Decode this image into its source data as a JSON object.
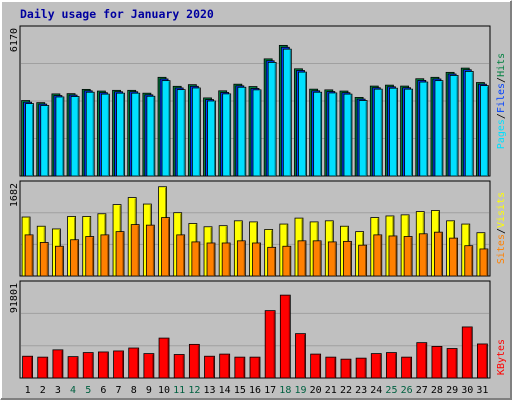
{
  "chart_data": {
    "type": "bar",
    "title": "Daily usage for January 2020",
    "categories": [
      "1",
      "2",
      "3",
      "4",
      "5",
      "6",
      "7",
      "8",
      "9",
      "10",
      "11",
      "12",
      "13",
      "14",
      "15",
      "16",
      "17",
      "18",
      "19",
      "20",
      "21",
      "22",
      "23",
      "24",
      "25",
      "26",
      "27",
      "28",
      "29",
      "30",
      "31"
    ],
    "weekend_days": [
      "4",
      "5",
      "11",
      "12",
      "18",
      "19",
      "25",
      "26"
    ],
    "panels": [
      {
        "id": "hits",
        "ymax_label": "6170",
        "ymax": 6170,
        "legend": [
          "Pages",
          "/",
          "Files",
          "/",
          "Hits"
        ],
        "series": [
          {
            "name": "Hits",
            "color": "#008040",
            "values": [
              3190,
              3100,
              3470,
              3480,
              3660,
              3590,
              3620,
              3620,
              3500,
              4170,
              3790,
              3860,
              3300,
              3600,
              3880,
              3780,
              4950,
              5520,
              4530,
              3670,
              3640,
              3590,
              3320,
              3800,
              3840,
              3800,
              4110,
              4170,
              4380,
              4560,
              3950
            ]
          },
          {
            "name": "Files",
            "color": "#0040ff",
            "values": [
              3120,
              3040,
              3400,
              3420,
              3600,
              3520,
              3560,
              3560,
              3430,
              4100,
              3720,
              3790,
              3230,
              3530,
              3810,
              3700,
              4870,
              5440,
              4460,
              3600,
              3570,
              3520,
              3250,
              3730,
              3770,
              3730,
              4040,
              4100,
              4310,
              4490,
              3880
            ]
          },
          {
            "name": "Pages",
            "color": "#00e0ff",
            "values": [
              3060,
              2980,
              3340,
              3360,
              3540,
              3460,
              3500,
              3500,
              3370,
              4030,
              3650,
              3720,
              3170,
              3470,
              3750,
              3640,
              4800,
              5360,
              4390,
              3540,
              3510,
              3460,
              3190,
              3670,
              3710,
              3670,
              3970,
              4030,
              4250,
              4420,
              3820
            ]
          }
        ]
      },
      {
        "id": "visits",
        "ymax_label": "1682",
        "ymax": 1682,
        "legend": [
          "Sites",
          "/",
          "Visits"
        ],
        "series": [
          {
            "name": "Visits",
            "color": "#ffff00",
            "values": [
              1090,
              920,
              870,
              1100,
              1100,
              1150,
              1320,
              1450,
              1330,
              1650,
              1170,
              970,
              910,
              930,
              1020,
              1000,
              860,
              960,
              1070,
              1000,
              1020,
              920,
              820,
              1080,
              1110,
              1130,
              1190,
              1210,
              1020,
              960,
              800
            ]
          },
          {
            "name": "Sites",
            "color": "#ff8000",
            "values": [
              760,
              620,
              550,
              670,
              730,
              760,
              820,
              950,
              940,
              1080,
              760,
              630,
              610,
              610,
              650,
              610,
              530,
              550,
              650,
              650,
              630,
              640,
              570,
              760,
              740,
              730,
              780,
              810,
              700,
              560,
              500
            ]
          }
        ]
      },
      {
        "id": "kbytes",
        "ymax_label": "91801",
        "ymax": 91801,
        "legend": [
          "KBytes"
        ],
        "series": [
          {
            "name": "KBytes",
            "color": "#ff0000",
            "values": [
              21500,
              20600,
              27800,
              21100,
              25100,
              25700,
              26700,
              29600,
              24100,
              39400,
              23200,
              33200,
              21500,
              23600,
              20600,
              20600,
              66500,
              81800,
              43800,
              23600,
              20600,
              18600,
              19600,
              24100,
              25100,
              20600,
              34900,
              31200,
              29100,
              50400,
              33600
            ]
          }
        ]
      }
    ]
  }
}
